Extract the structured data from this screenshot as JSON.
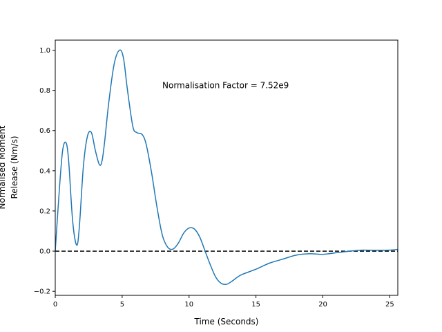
{
  "chart_data": {
    "type": "line",
    "title": "",
    "xlabel": "Time (Seconds)",
    "ylabel_line1": "Normalised Moment",
    "ylabel_line2": "Release (Nm/s)",
    "xlim": [
      0,
      25.6
    ],
    "ylim": [
      -0.22,
      1.05
    ],
    "xticks": [
      0,
      5,
      10,
      15,
      20,
      25
    ],
    "yticks": [
      -0.2,
      0.0,
      0.2,
      0.4,
      0.6,
      0.8,
      1.0
    ],
    "ytick_labels": [
      "−0.2",
      "0.0",
      "0.2",
      "0.4",
      "0.6",
      "0.8",
      "1.0"
    ],
    "grid": false,
    "annotation": "Normalisation Factor = 7.52e9",
    "annotation_pos": {
      "x": 8.0,
      "y": 0.81
    },
    "reference_line": {
      "y": 0,
      "style": "dashed",
      "color": "#000000"
    },
    "series": [
      {
        "color": "#1f77b4",
        "x": [
          0,
          0.3,
          0.55,
          0.8,
          1.0,
          1.3,
          1.6,
          1.8,
          2.1,
          2.4,
          2.7,
          3.0,
          3.3,
          3.5,
          3.7,
          4.0,
          4.4,
          4.8,
          5.1,
          5.4,
          5.8,
          6.1,
          6.5,
          6.8,
          7.2,
          7.6,
          8.0,
          8.4,
          8.8,
          9.2,
          9.6,
          10.0,
          10.4,
          10.8,
          11.2,
          11.6,
          12.0,
          12.4,
          12.8,
          13.2,
          13.6,
          14.0,
          15.0,
          16.0,
          17.0,
          18.0,
          19.0,
          20.0,
          21.0,
          22.0,
          23.0,
          24.0,
          25.0,
          25.6
        ],
        "y": [
          0.0,
          0.3,
          0.5,
          0.54,
          0.45,
          0.15,
          0.03,
          0.12,
          0.42,
          0.57,
          0.59,
          0.5,
          0.43,
          0.45,
          0.55,
          0.74,
          0.93,
          1.0,
          0.96,
          0.8,
          0.62,
          0.59,
          0.58,
          0.53,
          0.39,
          0.22,
          0.08,
          0.02,
          0.01,
          0.04,
          0.09,
          0.115,
          0.11,
          0.07,
          0.0,
          -0.07,
          -0.13,
          -0.16,
          -0.165,
          -0.15,
          -0.13,
          -0.115,
          -0.09,
          -0.06,
          -0.04,
          -0.02,
          -0.013,
          -0.016,
          -0.008,
          0.0,
          0.005,
          0.004,
          0.005,
          0.009
        ]
      }
    ]
  }
}
